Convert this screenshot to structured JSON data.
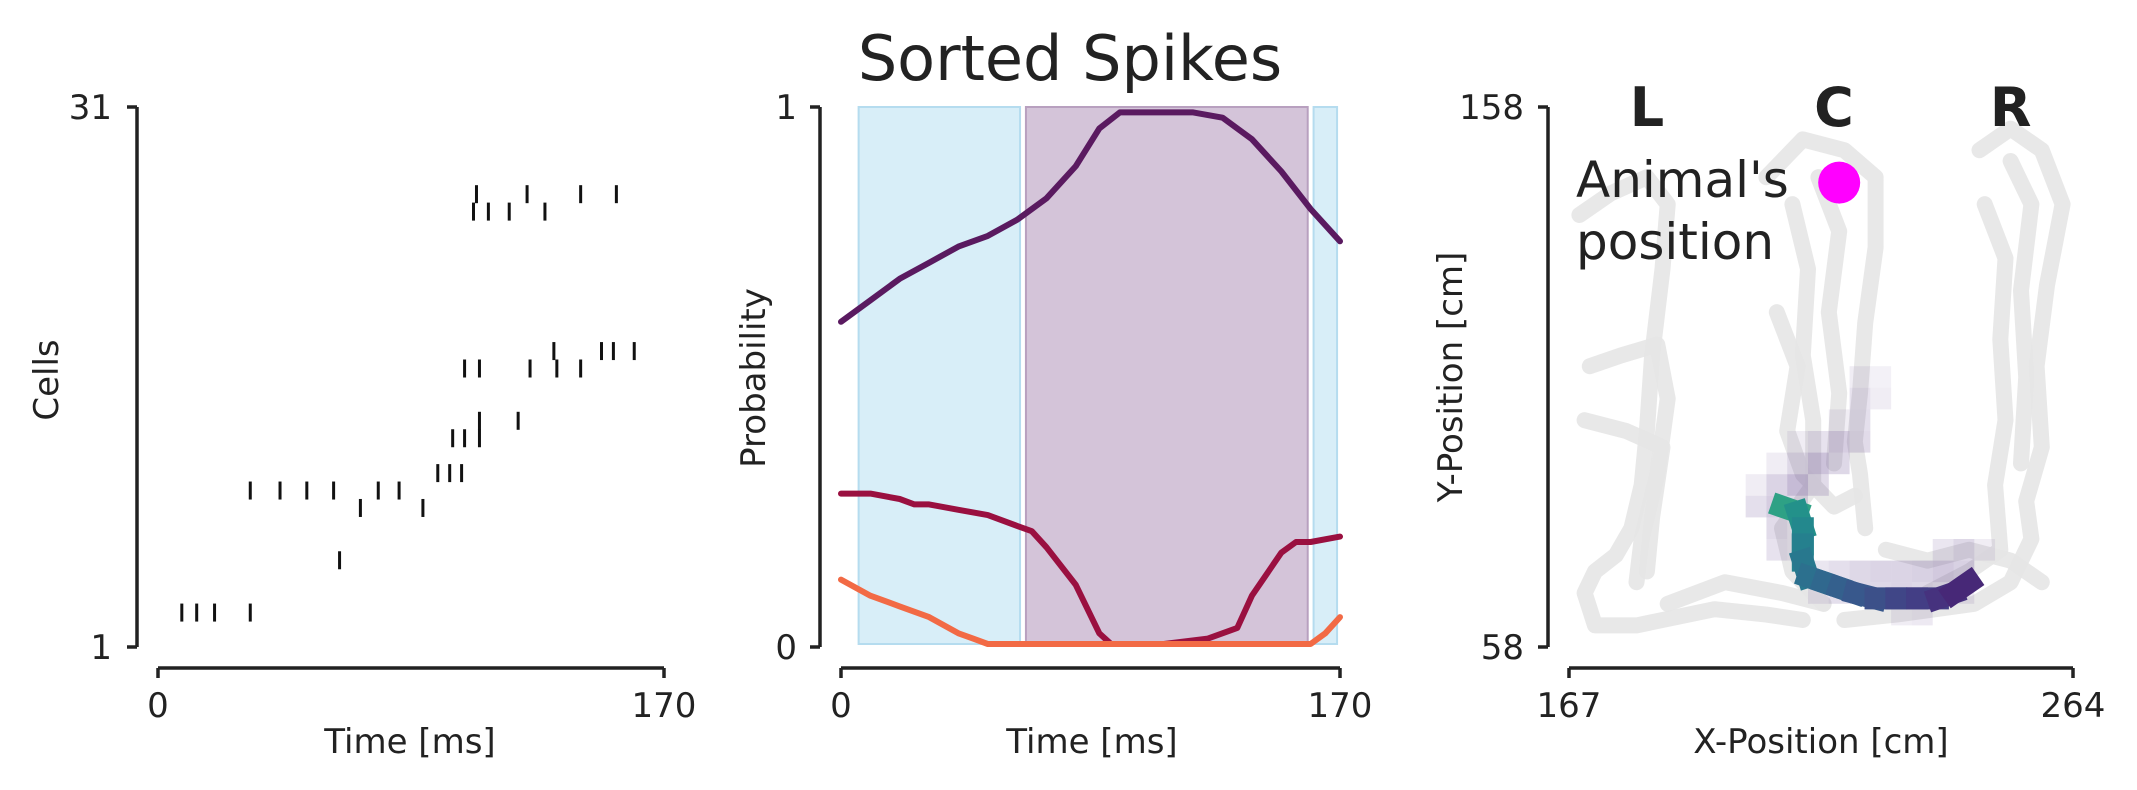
{
  "figure": {
    "title": "Sorted Spikes"
  },
  "chart_data": [
    {
      "type": "scatter",
      "id": "raster",
      "xlabel": "Time [ms]",
      "ylabel": "Cells",
      "xlim": [
        0,
        170
      ],
      "ylim": [
        1,
        31
      ],
      "xticks": [
        "0",
        "170"
      ],
      "yticks": [
        "1",
        "31"
      ],
      "marker": "vertical-tick",
      "spikes": [
        {
          "cell": 2,
          "times": [
            8,
            13,
            19,
            31
          ]
        },
        {
          "cell": 5,
          "times": [
            61
          ]
        },
        {
          "cell": 8,
          "times": [
            68,
            89
          ]
        },
        {
          "cell": 9,
          "times": [
            31,
            41,
            50,
            59,
            74,
            81
          ]
        },
        {
          "cell": 10,
          "times": [
            94,
            98,
            102
          ]
        },
        {
          "cell": 12,
          "times": [
            99,
            103,
            108
          ]
        },
        {
          "cell": 13,
          "times": [
            108,
            121
          ]
        },
        {
          "cell": 16,
          "times": [
            103,
            108,
            125,
            134,
            142
          ]
        },
        {
          "cell": 17,
          "times": [
            133,
            149,
            153,
            160
          ]
        },
        {
          "cell": 25,
          "times": [
            106,
            111,
            118,
            130
          ]
        },
        {
          "cell": 26,
          "times": [
            107,
            124,
            142,
            154
          ]
        }
      ]
    },
    {
      "type": "line",
      "id": "probability",
      "xlabel": "Time [ms]",
      "ylabel": "Probability",
      "xlim": [
        0,
        170
      ],
      "ylim": [
        0,
        1
      ],
      "xticks": [
        "0",
        "170"
      ],
      "yticks": [
        "0",
        "1"
      ],
      "shaded_regions": [
        {
          "start": 6,
          "end": 61,
          "color": "#d8eef8",
          "edge": "#b5dcef"
        },
        {
          "start": 63,
          "end": 159,
          "color": "#d4c4d9",
          "edge": "#b8a0bf"
        },
        {
          "start": 161,
          "end": 169,
          "color": "#d8eef8",
          "edge": "#b5dcef"
        }
      ],
      "series": [
        {
          "color": "#5a1a60",
          "x": [
            0,
            10,
            20,
            30,
            40,
            50,
            60,
            70,
            80,
            88,
            95,
            100,
            110,
            120,
            130,
            140,
            150,
            160,
            170
          ],
          "values": [
            0.6,
            0.64,
            0.68,
            0.71,
            0.74,
            0.76,
            0.79,
            0.83,
            0.89,
            0.96,
            0.99,
            0.99,
            0.99,
            0.99,
            0.98,
            0.94,
            0.88,
            0.81,
            0.75
          ]
        },
        {
          "color": "#9a1040",
          "x": [
            0,
            10,
            20,
            25,
            30,
            40,
            50,
            60,
            65,
            70,
            80,
            88,
            92,
            100,
            110,
            125,
            135,
            140,
            150,
            155,
            160,
            170
          ],
          "values": [
            0.28,
            0.28,
            0.27,
            0.26,
            0.26,
            0.25,
            0.24,
            0.22,
            0.21,
            0.18,
            0.11,
            0.02,
            0.0,
            0.0,
            0.0,
            0.01,
            0.03,
            0.09,
            0.17,
            0.19,
            0.19,
            0.2
          ]
        },
        {
          "color": "#f26a45",
          "x": [
            0,
            10,
            20,
            30,
            40,
            45,
            50,
            60,
            80,
            100,
            120,
            140,
            155,
            160,
            165,
            170
          ],
          "values": [
            0.12,
            0.09,
            0.07,
            0.05,
            0.02,
            0.01,
            0.0,
            0.0,
            0.0,
            0.0,
            0.0,
            0.0,
            0.0,
            0.0,
            0.02,
            0.05
          ]
        }
      ]
    },
    {
      "type": "heatmap",
      "id": "position",
      "xlabel": "X-Position [cm]",
      "ylabel": "Y-Position [cm]",
      "xlim": [
        167,
        264
      ],
      "ylim": [
        58,
        158
      ],
      "xticks": [
        "167",
        "264"
      ],
      "yticks": [
        "58",
        "158"
      ],
      "arm_labels": [
        {
          "text": "L",
          "x": 182,
          "y": 158
        },
        {
          "text": "C",
          "x": 218,
          "y": 158
        },
        {
          "text": "R",
          "x": 252,
          "y": 158
        }
      ],
      "annotation": {
        "text_lines": [
          "Animal's",
          "position"
        ],
        "color": "#ff00ff"
      },
      "animal_position": {
        "x": 219,
        "y": 144,
        "color": "#ff00ff"
      },
      "track_color": "#e6e6e6",
      "track_paths": [
        {
          "points": [
            [
              169,
              138
            ],
            [
              175,
              142
            ],
            [
              182,
              145
            ],
            [
              186,
              140
            ],
            [
              185,
              128
            ],
            [
              183,
              112
            ],
            [
              182,
              98
            ],
            [
              181,
              88
            ],
            [
              179,
              80
            ],
            [
              176,
              75
            ],
            [
              172,
              72
            ],
            [
              170,
              68
            ],
            [
              172,
              62
            ],
            [
              180,
              62
            ],
            [
              195,
              65
            ],
            [
              205,
              64
            ],
            [
              212,
              63
            ]
          ]
        },
        {
          "points": [
            [
              171,
              110
            ],
            [
              177,
              112
            ],
            [
              184,
              114
            ],
            [
              186,
              104
            ],
            [
              184,
              90
            ],
            [
              181,
              78
            ],
            [
              180,
              70
            ]
          ]
        },
        {
          "points": [
            [
              170,
              100
            ],
            [
              178,
              98
            ],
            [
              185,
              95
            ],
            [
              183,
              82
            ],
            [
              182,
              72
            ]
          ]
        },
        {
          "points": [
            [
              186,
              66
            ],
            [
              197,
              70
            ],
            [
              208,
              68
            ],
            [
              216,
              66
            ]
          ]
        },
        {
          "points": [
            [
              205,
              145
            ],
            [
              212,
              152
            ],
            [
              220,
              150
            ],
            [
              226,
              145
            ],
            [
              226,
              132
            ],
            [
              224,
              118
            ],
            [
              223,
              105
            ],
            [
              222,
              96
            ],
            [
              223,
              90
            ],
            [
              224,
              80
            ]
          ]
        },
        {
          "points": [
            [
              210,
              140
            ],
            [
              213,
              128
            ],
            [
              212,
              112
            ],
            [
              214,
              100
            ],
            [
              214,
              88
            ],
            [
              208,
              80
            ],
            [
              210,
              72
            ],
            [
              216,
              66
            ]
          ]
        },
        {
          "points": [
            [
              207,
              120
            ],
            [
              211,
              110
            ],
            [
              209,
              98
            ],
            [
              212,
              90
            ],
            [
              218,
              84
            ],
            [
              222,
              86
            ]
          ]
        },
        {
          "points": [
            [
              215,
              145
            ],
            [
              219,
              135
            ],
            [
              217,
              120
            ],
            [
              219,
              105
            ],
            [
              218,
              92
            ]
          ]
        },
        {
          "points": [
            [
              246,
              150
            ],
            [
              252,
              154
            ],
            [
              258,
              150
            ],
            [
              262,
              140
            ],
            [
              259,
              125
            ],
            [
              257,
              110
            ],
            [
              258,
              95
            ],
            [
              255,
              85
            ],
            [
              256,
              78
            ],
            [
              252,
              70
            ],
            [
              245,
              66
            ],
            [
              230,
              64
            ],
            [
              220,
              63
            ]
          ]
        },
        {
          "points": [
            [
              247,
              140
            ],
            [
              251,
              130
            ],
            [
              250,
              115
            ],
            [
              251,
              100
            ],
            [
              249,
              88
            ],
            [
              250,
              76
            ],
            [
              244,
              72
            ],
            [
              236,
              68
            ]
          ]
        },
        {
          "points": [
            [
              252,
              148
            ],
            [
              256,
              140
            ],
            [
              254,
              124
            ],
            [
              255,
              108
            ],
            [
              254,
              92
            ]
          ]
        },
        {
          "points": [
            [
              228,
              76
            ],
            [
              236,
              74
            ],
            [
              244,
              76
            ],
            [
              252,
              74
            ],
            [
              258,
              70
            ]
          ]
        }
      ],
      "posterior_cells": [
        {
          "x": 223,
          "y": 108,
          "a": 0.1
        },
        {
          "x": 227,
          "y": 108,
          "a": 0.08
        },
        {
          "x": 223,
          "y": 104,
          "a": 0.16
        },
        {
          "x": 227,
          "y": 104,
          "a": 0.1
        },
        {
          "x": 223,
          "y": 100,
          "a": 0.18
        },
        {
          "x": 219,
          "y": 100,
          "a": 0.1
        },
        {
          "x": 215,
          "y": 96,
          "a": 0.16
        },
        {
          "x": 219,
          "y": 96,
          "a": 0.28
        },
        {
          "x": 223,
          "y": 96,
          "a": 0.2
        },
        {
          "x": 211,
          "y": 96,
          "a": 0.1
        },
        {
          "x": 211,
          "y": 92,
          "a": 0.22
        },
        {
          "x": 215,
          "y": 92,
          "a": 0.34
        },
        {
          "x": 219,
          "y": 92,
          "a": 0.22
        },
        {
          "x": 207,
          "y": 92,
          "a": 0.1
        },
        {
          "x": 207,
          "y": 88,
          "a": 0.24
        },
        {
          "x": 211,
          "y": 88,
          "a": 0.38
        },
        {
          "x": 215,
          "y": 88,
          "a": 0.2
        },
        {
          "x": 203,
          "y": 88,
          "a": 0.1
        },
        {
          "x": 207,
          "y": 84,
          "a": 0.28
        },
        {
          "x": 211,
          "y": 84,
          "a": 0.2
        },
        {
          "x": 203,
          "y": 84,
          "a": 0.18
        },
        {
          "x": 207,
          "y": 80,
          "a": 0.2
        },
        {
          "x": 211,
          "y": 80,
          "a": 0.12
        },
        {
          "x": 207,
          "y": 76,
          "a": 0.16
        },
        {
          "x": 211,
          "y": 76,
          "a": 0.12
        },
        {
          "x": 215,
          "y": 72,
          "a": 0.14
        },
        {
          "x": 219,
          "y": 72,
          "a": 0.18
        },
        {
          "x": 223,
          "y": 72,
          "a": 0.22
        },
        {
          "x": 227,
          "y": 72,
          "a": 0.24
        },
        {
          "x": 231,
          "y": 72,
          "a": 0.24
        },
        {
          "x": 235,
          "y": 72,
          "a": 0.26
        },
        {
          "x": 239,
          "y": 72,
          "a": 0.3
        },
        {
          "x": 243,
          "y": 72,
          "a": 0.26
        },
        {
          "x": 243,
          "y": 76,
          "a": 0.22
        },
        {
          "x": 239,
          "y": 76,
          "a": 0.14
        },
        {
          "x": 247,
          "y": 76,
          "a": 0.1
        },
        {
          "x": 219,
          "y": 68,
          "a": 0.18
        },
        {
          "x": 223,
          "y": 68,
          "a": 0.22
        },
        {
          "x": 227,
          "y": 68,
          "a": 0.22
        },
        {
          "x": 231,
          "y": 68,
          "a": 0.24
        },
        {
          "x": 235,
          "y": 68,
          "a": 0.22
        },
        {
          "x": 239,
          "y": 68,
          "a": 0.18
        },
        {
          "x": 243,
          "y": 68,
          "a": 0.12
        },
        {
          "x": 215,
          "y": 68,
          "a": 0.12
        },
        {
          "x": 231,
          "y": 64,
          "a": 0.1
        },
        {
          "x": 235,
          "y": 64,
          "a": 0.12
        }
      ],
      "trajectory": [
        {
          "x": 208,
          "y": 84,
          "color": "#4cbb6a"
        },
        {
          "x": 211,
          "y": 83,
          "color": "#2ea185"
        },
        {
          "x": 212,
          "y": 80,
          "color": "#23918a"
        },
        {
          "x": 212,
          "y": 77,
          "color": "#23888d"
        },
        {
          "x": 212,
          "y": 74,
          "color": "#25808e"
        },
        {
          "x": 213,
          "y": 71,
          "color": "#28788e"
        },
        {
          "x": 216,
          "y": 70,
          "color": "#2c708e"
        },
        {
          "x": 219,
          "y": 69,
          "color": "#30688e"
        },
        {
          "x": 222,
          "y": 68,
          "color": "#34608d"
        },
        {
          "x": 226,
          "y": 67,
          "color": "#38588c"
        },
        {
          "x": 230,
          "y": 67,
          "color": "#3c5089"
        },
        {
          "x": 234,
          "y": 67,
          "color": "#404687"
        },
        {
          "x": 238,
          "y": 67,
          "color": "#433e85"
        },
        {
          "x": 241,
          "y": 68,
          "color": "#46327e"
        },
        {
          "x": 244,
          "y": 70,
          "color": "#472877"
        }
      ]
    }
  ]
}
